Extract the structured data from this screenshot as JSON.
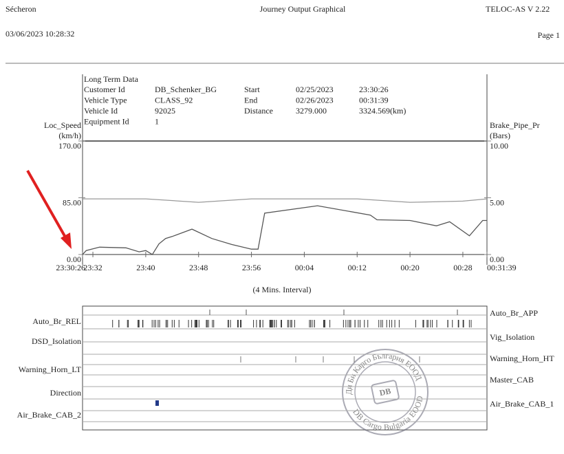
{
  "header": {
    "left": "Sécheron",
    "center": "Journey Output Graphical",
    "right": "TELOC-AS V 2.22",
    "date": "03/06/2023  10:28:32",
    "page": "Page 1"
  },
  "info": {
    "title": "Long Term Data",
    "rows": [
      [
        "Customer Id",
        "DB_Schenker_BG",
        "Start",
        "02/25/2023",
        "23:30:26"
      ],
      [
        "Vehicle Type",
        "CLASS_92",
        "End",
        "02/26/2023",
        "00:31:39"
      ],
      [
        "Vehicle Id",
        "92025",
        "Distance",
        "3279.000",
        "3324.569(km)"
      ],
      [
        "Equipment Id",
        "1"
      ]
    ]
  },
  "chart_data": {
    "type": "line",
    "y_label": [
      "Loc_Speed",
      "(km/h)"
    ],
    "y2_label": [
      "Brake_Pipe_Pr",
      "(Bars)"
    ],
    "x_label": "(4 Mins. Interval)",
    "xlim": [
      "23:30:26",
      "00:31:39"
    ],
    "xticks": [
      "23:30:26",
      "23:32",
      "23:40",
      "23:48",
      "23:56",
      "00:04",
      "00:12",
      "00:20",
      "00:28",
      "00:31:39"
    ],
    "ylim": [
      0,
      170
    ],
    "yticks": [
      {
        "value": 0,
        "label": "0.00"
      },
      {
        "value": 85,
        "label": "85.00"
      },
      {
        "value": 170,
        "label": "170.00"
      }
    ],
    "y2lim": [
      0,
      10
    ],
    "y2ticks": [
      {
        "value": 0,
        "label": "0.00"
      },
      {
        "value": 5,
        "label": "5.00"
      },
      {
        "value": 10,
        "label": "10.00"
      }
    ],
    "series": [
      {
        "name": "Loc_Speed",
        "color": "#555555",
        "x": [
          "23:30:26",
          "23:31",
          "23:33",
          "23:37",
          "23:39",
          "23:40",
          "23:41",
          "23:42",
          "23:43",
          "23:44",
          "23:47",
          "23:50",
          "23:53",
          "23:56",
          "23:57",
          "23:58",
          "00:06",
          "00:14",
          "00:15",
          "00:20",
          "00:24",
          "00:26",
          "00:29",
          "00:31",
          "00:31:39"
        ],
        "values": [
          0,
          6,
          11,
          10,
          4,
          6,
          0,
          16,
          24,
          27,
          38,
          24,
          15,
          8,
          8,
          62,
          73,
          59,
          52,
          51,
          43,
          49,
          28,
          51,
          51
        ]
      },
      {
        "name": "Brake_Pipe_Pr",
        "color": "#999999",
        "axis": "y2",
        "x": [
          "23:30:26",
          "23:40",
          "23:48",
          "23:56",
          "00:04",
          "00:12",
          "00:20",
          "00:28",
          "00:31:39"
        ],
        "values": [
          4.9,
          4.9,
          4.6,
          4.9,
          4.9,
          4.9,
          4.6,
          4.7,
          4.9
        ]
      }
    ]
  },
  "channels": {
    "left": [
      "Auto_Br_REL",
      "DSD_Isolation",
      "Warning_Horn_LT",
      "Direction",
      "Air_Brake_CAB_2"
    ],
    "right": [
      "Auto_Br_APP",
      "Vig_Isolation",
      "Warning_Horn_HT",
      "Master_CAB",
      "Air_Brake_CAB_1"
    ]
  },
  "stamp": {
    "ring_top": "Ди Би Карго България ЕООД",
    "ring_bottom": "DB Cargo Bulgaria EOOD",
    "center": "DB"
  }
}
